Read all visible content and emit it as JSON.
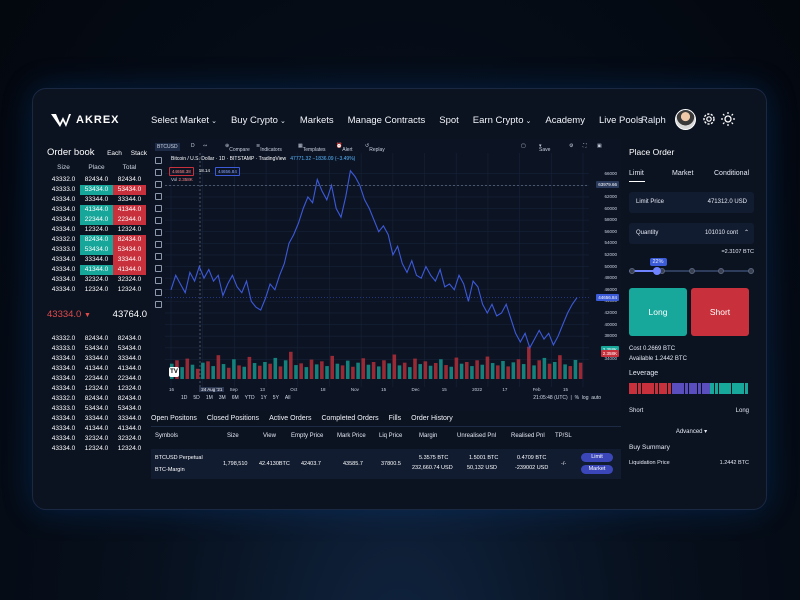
{
  "brand": {
    "name": "AKREX"
  },
  "nav": {
    "items": [
      {
        "label": "Select Market",
        "dropdown": true
      },
      {
        "label": "Buy Crypto",
        "dropdown": true
      },
      {
        "label": "Markets",
        "dropdown": false
      },
      {
        "label": "Manage Contracts",
        "dropdown": false
      },
      {
        "label": "Spot",
        "dropdown": false
      },
      {
        "label": "Earn Crypto",
        "dropdown": true
      },
      {
        "label": "Academy",
        "dropdown": false
      },
      {
        "label": "Live Pools",
        "dropdown": false
      }
    ],
    "user": "Ralph",
    "icons": [
      "gear-icon",
      "sun-icon"
    ]
  },
  "orderbook": {
    "title": "Order book",
    "options": [
      "Each",
      "Stack"
    ],
    "columns": [
      "Size",
      "Place",
      "Total"
    ],
    "asks": [
      {
        "size": "43332.0",
        "place": "82434.0",
        "total": "82434.0",
        "g": false,
        "r": false
      },
      {
        "size": "43333.0",
        "place": "53434.0",
        "total": "53434.0",
        "g": true,
        "r": true
      },
      {
        "size": "43334.0",
        "place": "33344.0",
        "total": "33344.0",
        "g": false,
        "r": false
      },
      {
        "size": "43334.0",
        "place": "41344.0",
        "total": "41344.0",
        "g": true,
        "r": true
      },
      {
        "size": "43334.0",
        "place": "22344.0",
        "total": "22344.0",
        "g": true,
        "r": true
      },
      {
        "size": "43334.0",
        "place": "12324.0",
        "total": "12324.0",
        "g": false,
        "r": false
      },
      {
        "size": "43332.0",
        "place": "82434.0",
        "total": "82434.0",
        "g": true,
        "r": true
      },
      {
        "size": "43333.0",
        "place": "53434.0",
        "total": "53434.0",
        "g": true,
        "r": true
      },
      {
        "size": "43334.0",
        "place": "33344.0",
        "total": "33344.0",
        "g": false,
        "r": true
      },
      {
        "size": "43334.0",
        "place": "41344.0",
        "total": "41344.0",
        "g": true,
        "r": true
      },
      {
        "size": "43334.0",
        "place": "32324.0",
        "total": "32324.0",
        "g": false,
        "r": false
      },
      {
        "size": "43334.0",
        "place": "12324.0",
        "total": "12324.0",
        "g": false,
        "r": false
      }
    ],
    "mid_price": "43334.0",
    "last_price": "43764.0",
    "bids": [
      {
        "size": "43332.0",
        "place": "82434.0",
        "total": "82434.0"
      },
      {
        "size": "43333.0",
        "place": "53434.0",
        "total": "53434.0"
      },
      {
        "size": "43334.0",
        "place": "33344.0",
        "total": "33344.0"
      },
      {
        "size": "43334.0",
        "place": "41344.0",
        "total": "41344.0"
      },
      {
        "size": "43334.0",
        "place": "22344.0",
        "total": "22344.0"
      },
      {
        "size": "43334.0",
        "place": "12324.0",
        "total": "12324.0"
      },
      {
        "size": "43332.0",
        "place": "82434.0",
        "total": "82434.0"
      },
      {
        "size": "43333.0",
        "place": "53434.0",
        "total": "53434.0"
      },
      {
        "size": "43334.0",
        "place": "33344.0",
        "total": "33344.0"
      },
      {
        "size": "43334.0",
        "place": "41344.0",
        "total": "41344.0"
      },
      {
        "size": "43334.0",
        "place": "32324.0",
        "total": "32324.0"
      },
      {
        "size": "43334.0",
        "place": "12324.0",
        "total": "12324.0"
      }
    ]
  },
  "chart_toolbar": {
    "symbol": "BTCUSD",
    "interval": "D",
    "compare": "Compare",
    "indicators": "Indicators",
    "templates": "Templates",
    "alert": "Alert",
    "replay": "Replay",
    "save": "Save"
  },
  "chart_legend": {
    "title": "Bitcoin / U.S. Dollar",
    "interval": "1D",
    "exchange": "BITSTAMP",
    "source": "TradingView",
    "ohlc": "47771.32 −1836.09 (−3.49%)",
    "vol_label": "Vol",
    "vol_value": "2.358K",
    "badge_sell": "44658.38",
    "badge_spread": "18.14",
    "badge_buy": "44656.84"
  },
  "chart_ranges": [
    "1D",
    "5D",
    "1M",
    "3M",
    "6M",
    "YTD",
    "1Y",
    "5Y",
    "All"
  ],
  "chart_time": "21:05:48 (UTC)",
  "chart_scale": [
    "%",
    "log",
    "auto"
  ],
  "chart_data": {
    "type": "line",
    "title": "Bitcoin / U.S. Dollar",
    "y_ticks": [
      66000,
      64000,
      62000,
      60000,
      58000,
      56000,
      54000,
      52000,
      50000,
      48000,
      46000,
      44000,
      42000,
      40000,
      38000,
      36000,
      34000
    ],
    "ylim": [
      32000,
      67500
    ],
    "x_ticks": [
      "16",
      "24 Aug '21",
      "Sep",
      "13",
      "Oct",
      "18",
      "Nov",
      "15",
      "Dec",
      "15",
      "2022",
      "17",
      "Feb",
      "15"
    ],
    "price_tags": [
      {
        "label": "63979.66",
        "value": 63979.66,
        "color": "#2a3a5c"
      },
      {
        "label": "44656.84",
        "value": 44656.84,
        "color": "#3b5bd8"
      },
      {
        "label": "2.358K",
        "value": 35600,
        "color": "#16a69a"
      },
      {
        "label": "2.358K",
        "value": 34900,
        "color": "#c8313b"
      }
    ],
    "series": [
      {
        "values": [
          46000,
          48500,
          47000,
          45500,
          49000,
          47500,
          50000,
          48000,
          49500,
          47500,
          48500,
          45000,
          47000,
          48500,
          46500,
          45500,
          47500,
          44000,
          43000,
          42500,
          44500,
          47000,
          46000,
          48500,
          50500,
          54000,
          55500,
          57500,
          60000,
          62000,
          61000,
          65000,
          63000,
          61500,
          64000,
          60000,
          58500,
          62000,
          66500,
          65500,
          64000,
          61500,
          60000,
          58000,
          56000,
          57000,
          55500,
          52000,
          53500,
          50500,
          49000,
          51000,
          48500,
          48000,
          50000,
          48500,
          47500,
          49500,
          46500,
          47000,
          46000,
          48500,
          47000,
          44000,
          47500,
          46500,
          43500,
          42000,
          43500,
          41500,
          42000,
          43500,
          41000,
          38500,
          37000,
          38500,
          36000,
          37500,
          39000,
          37500,
          38500,
          36500,
          38000,
          40000,
          42000,
          43500,
          44656
        ]
      }
    ],
    "volume": [
      {
        "v": 0.45,
        "up": true
      },
      {
        "v": 0.55,
        "up": false
      },
      {
        "v": 0.35,
        "up": true
      },
      {
        "v": 0.6,
        "up": false
      },
      {
        "v": 0.42,
        "up": true
      },
      {
        "v": 0.3,
        "up": false
      },
      {
        "v": 0.48,
        "up": true
      },
      {
        "v": 0.52,
        "up": false
      },
      {
        "v": 0.38,
        "up": true
      },
      {
        "v": 0.7,
        "up": false
      },
      {
        "v": 0.44,
        "up": true
      },
      {
        "v": 0.33,
        "up": false
      },
      {
        "v": 0.58,
        "up": true
      },
      {
        "v": 0.4,
        "up": false
      },
      {
        "v": 0.36,
        "up": true
      },
      {
        "v": 0.65,
        "up": false
      },
      {
        "v": 0.47,
        "up": true
      },
      {
        "v": 0.39,
        "up": false
      },
      {
        "v": 0.5,
        "up": true
      },
      {
        "v": 0.45,
        "up": false
      },
      {
        "v": 0.62,
        "up": true
      },
      {
        "v": 0.37,
        "up": false
      },
      {
        "v": 0.55,
        "up": true
      },
      {
        "v": 0.8,
        "up": false
      },
      {
        "v": 0.41,
        "up": true
      },
      {
        "v": 0.46,
        "up": false
      },
      {
        "v": 0.35,
        "up": true
      },
      {
        "v": 0.57,
        "up": false
      },
      {
        "v": 0.43,
        "up": true
      },
      {
        "v": 0.52,
        "up": false
      },
      {
        "v": 0.38,
        "up": true
      },
      {
        "v": 0.68,
        "up": false
      },
      {
        "v": 0.45,
        "up": true
      },
      {
        "v": 0.4,
        "up": false
      },
      {
        "v": 0.54,
        "up": true
      },
      {
        "v": 0.36,
        "up": false
      },
      {
        "v": 0.48,
        "up": true
      },
      {
        "v": 0.61,
        "up": false
      },
      {
        "v": 0.42,
        "up": true
      },
      {
        "v": 0.5,
        "up": false
      },
      {
        "v": 0.37,
        "up": true
      },
      {
        "v": 0.55,
        "up": false
      },
      {
        "v": 0.46,
        "up": true
      },
      {
        "v": 0.72,
        "up": false
      },
      {
        "v": 0.4,
        "up": true
      },
      {
        "v": 0.48,
        "up": false
      },
      {
        "v": 0.35,
        "up": true
      },
      {
        "v": 0.6,
        "up": false
      },
      {
        "v": 0.44,
        "up": true
      },
      {
        "v": 0.52,
        "up": false
      },
      {
        "v": 0.39,
        "up": true
      },
      {
        "v": 0.47,
        "up": false
      },
      {
        "v": 0.58,
        "up": true
      },
      {
        "v": 0.41,
        "up": false
      },
      {
        "v": 0.36,
        "up": true
      },
      {
        "v": 0.63,
        "up": false
      },
      {
        "v": 0.45,
        "up": true
      },
      {
        "v": 0.5,
        "up": false
      },
      {
        "v": 0.38,
        "up": true
      },
      {
        "v": 0.55,
        "up": false
      },
      {
        "v": 0.42,
        "up": true
      },
      {
        "v": 0.66,
        "up": false
      },
      {
        "v": 0.47,
        "up": true
      },
      {
        "v": 0.4,
        "up": false
      },
      {
        "v": 0.53,
        "up": true
      },
      {
        "v": 0.37,
        "up": false
      },
      {
        "v": 0.49,
        "up": true
      },
      {
        "v": 0.58,
        "up": false
      },
      {
        "v": 0.44,
        "up": true
      },
      {
        "v": 0.95,
        "up": false
      },
      {
        "v": 0.4,
        "up": true
      },
      {
        "v": 0.55,
        "up": false
      },
      {
        "v": 0.62,
        "up": true
      },
      {
        "v": 0.45,
        "up": false
      },
      {
        "v": 0.5,
        "up": true
      },
      {
        "v": 0.7,
        "up": false
      },
      {
        "v": 0.43,
        "up": true
      },
      {
        "v": 0.38,
        "up": false
      },
      {
        "v": 0.56,
        "up": true
      },
      {
        "v": 0.48,
        "up": false
      }
    ]
  },
  "positions": {
    "tabs": [
      "Open Positons",
      "Closed Positions",
      "Active Orders",
      "Completed Orders",
      "Fills",
      "Order History"
    ],
    "headers": [
      "Symbols",
      "Size",
      "View",
      "Empty Price",
      "Mark Price",
      "Liq Price",
      "Margin",
      "Unrealised Pnl",
      "Realised Pnl",
      "TP/SL"
    ],
    "row": {
      "symbol": "BTCUSD Perpetual",
      "type": "BTC-Margin",
      "size": "1,798,510",
      "view": "42.4130BTC",
      "empty_price": "42403.7",
      "mark_price": "43585.7",
      "liq_price": "37800.5",
      "margin_1": "5.3575 BTC",
      "margin_2": "232,660.74 USD",
      "unrealised_1": "1.5001 BTC",
      "unrealised_2": "50,132 USD",
      "realised_1": "0.4709 BTC",
      "realised_2": "-239002 USD",
      "tpsl": "-/-",
      "btn_limit": "Limit",
      "btn_market": "Market"
    }
  },
  "order": {
    "title": "Place Order",
    "tabs": [
      "Limit",
      "Market",
      "Conditional"
    ],
    "limit_price_label": "Limit Price",
    "limit_price_value": "471312.0 USD",
    "quantity_label": "Quantity",
    "quantity_value": "101010 cont",
    "btc_amount": "=2.3107 BTC",
    "slider_percent": 22,
    "slider_label": "22%",
    "long_label": "Long",
    "short_label": "Short",
    "cost": "Cost 0.2669 BTC",
    "available": "Available 1.2442 BTC",
    "leverage_label": "Leverage",
    "short_side": "Short",
    "long_side": "Long",
    "advanced": "Advanced",
    "buy_summary": "Buy Summary",
    "liq_label": "Liquidation Price",
    "liq_value": "1.2442 BTC",
    "colors": {
      "long": "#17a79b",
      "short": "#c8313b",
      "accent": "#3b5bd8"
    }
  }
}
